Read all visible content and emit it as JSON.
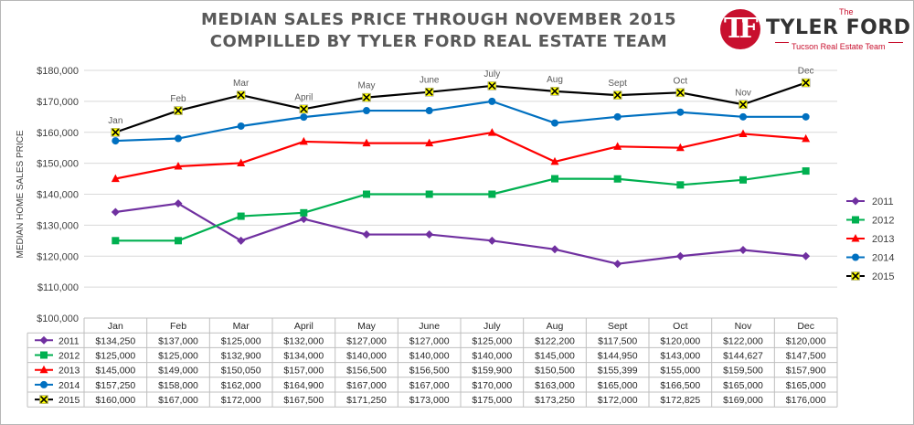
{
  "header": {
    "title_line1": "MEDIAN SALES PRICE THROUGH NOVEMBER 2015",
    "title_line2": "COMPILLED BY TYLER FORD REAL ESTATE TEAM"
  },
  "logo": {
    "monogram": "TF",
    "the": "The",
    "name": "TYLER FORD",
    "tagline": "Tucson Real Estate Team",
    "color": "#c8102e"
  },
  "chart_data": {
    "type": "line",
    "ylabel": "MEDIAN HOME SALES PRICE",
    "ylim": [
      100000,
      180000
    ],
    "ytick_step": 10000,
    "yticks": [
      "$100,000",
      "$110,000",
      "$120,000",
      "$130,000",
      "$140,000",
      "$150,000",
      "$160,000",
      "$170,000",
      "$180,000"
    ],
    "categories": [
      "Jan",
      "Feb",
      "Mar",
      "April",
      "May",
      "June",
      "July",
      "Aug",
      "Sept",
      "Oct",
      "Nov",
      "Dec"
    ],
    "grid": true,
    "legend_position": "right",
    "point_label_series": "2015",
    "series": [
      {
        "name": "2011",
        "color": "#7030a0",
        "marker": "diamond",
        "values": [
          134250,
          137000,
          125000,
          132000,
          127000,
          127000,
          125000,
          122200,
          117500,
          120000,
          122000,
          120000
        ],
        "labels": [
          "$134,250",
          "$137,000",
          "$125,000",
          "$132,000",
          "$127,000",
          "$127,000",
          "$125,000",
          "$122,200",
          "$117,500",
          "$120,000",
          "$122,000",
          "$120,000"
        ]
      },
      {
        "name": "2012",
        "color": "#00b050",
        "marker": "square",
        "values": [
          125000,
          125000,
          132900,
          134000,
          140000,
          140000,
          140000,
          145000,
          144950,
          143000,
          144627,
          147500
        ],
        "labels": [
          "$125,000",
          "$125,000",
          "$132,900",
          "$134,000",
          "$140,000",
          "$140,000",
          "$140,000",
          "$145,000",
          "$144,950",
          "$143,000",
          "$144,627",
          "$147,500"
        ]
      },
      {
        "name": "2013",
        "color": "#ff0000",
        "marker": "triangle",
        "values": [
          145000,
          149000,
          150050,
          157000,
          156500,
          156500,
          159900,
          150500,
          155399,
          155000,
          159500,
          157900
        ],
        "labels": [
          "$145,000",
          "$149,000",
          "$150,050",
          "$157,000",
          "$156,500",
          "$156,500",
          "$159,900",
          "$150,500",
          "$155,399",
          "$155,000",
          "$159,500",
          "$157,900"
        ]
      },
      {
        "name": "2014",
        "color": "#0070c0",
        "marker": "circle",
        "values": [
          157250,
          158000,
          162000,
          164900,
          167000,
          167000,
          170000,
          163000,
          165000,
          166500,
          165000,
          165000
        ],
        "labels": [
          "$157,250",
          "$158,000",
          "$162,000",
          "$164,900",
          "$167,000",
          "$167,000",
          "$170,000",
          "$163,000",
          "$165,000",
          "$166,500",
          "$165,000",
          "$165,000"
        ]
      },
      {
        "name": "2015",
        "color": "#000000",
        "marker": "x-yellow",
        "marker_fill": "#ffff00",
        "values": [
          160000,
          167000,
          172000,
          167500,
          171250,
          173000,
          175000,
          173250,
          172000,
          172825,
          169000,
          176000
        ],
        "labels": [
          "$160,000",
          "$167,000",
          "$172,000",
          "$167,500",
          "$171,250",
          "$173,000",
          "$175,000",
          "$173,250",
          "$172,000",
          "$172,825",
          "$169,000",
          "$176,000"
        ]
      }
    ]
  }
}
